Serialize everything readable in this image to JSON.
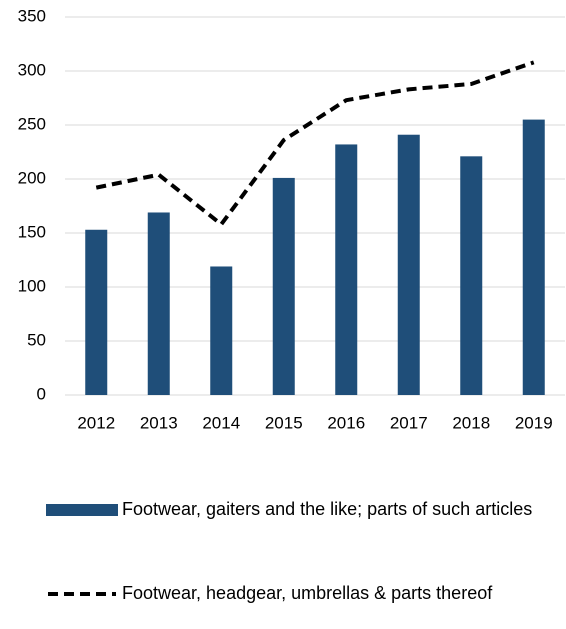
{
  "chart_data": {
    "type": "combo",
    "categories": [
      "2012",
      "2013",
      "2014",
      "2015",
      "2016",
      "2017",
      "2018",
      "2019"
    ],
    "series": [
      {
        "name": "Footwear, gaiters and the like; parts of such articles",
        "type": "bar",
        "color": "#1f4e79",
        "values": [
          153,
          169,
          119,
          201,
          232,
          241,
          221,
          255
        ]
      },
      {
        "name": "Footwear, headgear, umbrellas & parts thereof",
        "type": "line",
        "color": "#000000",
        "dashed": true,
        "values": [
          192,
          204,
          158,
          236,
          273,
          283,
          288,
          308
        ]
      }
    ],
    "ylim": [
      0,
      350
    ],
    "yticks": [
      0,
      50,
      100,
      150,
      200,
      250,
      300,
      350
    ],
    "grid": true,
    "legend": "bottom"
  }
}
